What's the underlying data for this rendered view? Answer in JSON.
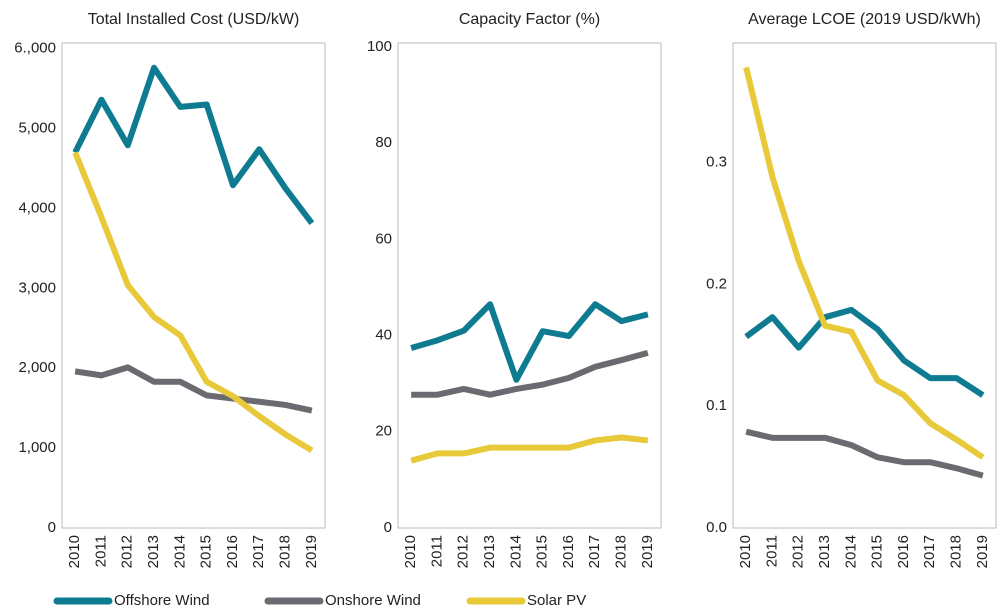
{
  "chart_data": [
    {
      "type": "line",
      "title": "Total Installed Cost (USD/kW)",
      "categories": [
        "2010",
        "2011",
        "2012",
        "2013",
        "2014",
        "2015",
        "2016",
        "2017",
        "2018",
        "2019"
      ],
      "series": [
        {
          "values": [
            4700,
            5360,
            4790,
            5760,
            5270,
            5300,
            4290,
            4740,
            4250,
            3815
          ]
        },
        {
          "values": [
            1960,
            1910,
            2010,
            1830,
            1830,
            1660,
            1620,
            1580,
            1540,
            1470
          ]
        },
        {
          "values": [
            4700,
            3890,
            3040,
            2640,
            2410,
            1830,
            1650,
            1400,
            1170,
            970
          ]
        }
      ],
      "ylim": [
        0,
        6070
      ],
      "yticks": [
        0,
        {
          "value": 1000,
          "label": "1,000"
        },
        {
          "value": 2000,
          "label": "2,000"
        },
        {
          "value": 3000,
          "label": "3,000"
        },
        {
          "value": 4000,
          "label": "4,000"
        },
        {
          "value": 5000,
          "label": "5,000"
        },
        {
          "value": 6000,
          "label": "6.,000"
        }
      ]
    },
    {
      "type": "line",
      "title": "Capacity Factor (%)",
      "categories": [
        "2010",
        "2011",
        "2012",
        "2013",
        "2014",
        "2015",
        "2016",
        "2017",
        "2018",
        "2019"
      ],
      "series": [
        {
          "values": [
            37.4,
            39,
            41,
            46.5,
            30.8,
            40.9,
            39.9,
            46.5,
            43,
            44.4
          ]
        },
        {
          "values": [
            27.7,
            27.7,
            28.9,
            27.7,
            28.9,
            29.8,
            31.2,
            33.5,
            34.9,
            36.4
          ]
        },
        {
          "values": [
            14,
            15.5,
            15.5,
            16.7,
            16.7,
            16.7,
            16.7,
            18.2,
            18.8,
            18.2
          ]
        }
      ],
      "ylim": [
        0,
        100.8
      ],
      "yticks": [
        0,
        20,
        40,
        60,
        80,
        100
      ]
    },
    {
      "type": "line",
      "title": "Average LCOE (2019 USD/kWh)",
      "categories": [
        "2010",
        "2011",
        "2012",
        "2013",
        "2014",
        "2015",
        "2016",
        "2017",
        "2018",
        "2019"
      ],
      "series": [
        {
          "values": [
            0.157,
            0.173,
            0.148,
            0.173,
            0.179,
            0.163,
            0.1375,
            0.123,
            0.123,
            0.109
          ]
        },
        {
          "values": [
            0.079,
            0.074,
            0.074,
            0.074,
            0.068,
            0.058,
            0.054,
            0.054,
            0.049,
            0.043
          ]
        },
        {
          "values": [
            0.378,
            0.288,
            0.219,
            0.166,
            0.161,
            0.121,
            0.109,
            0.086,
            0.0725,
            0.058
          ]
        }
      ],
      "ylim": [
        0,
        0.398
      ],
      "yticks": [
        {
          "value": 0,
          "label": "0.0"
        },
        0.1,
        0.2,
        0.3
      ]
    }
  ],
  "legend": [
    {
      "name": "Offshore Wind",
      "color": "#0f7b91"
    },
    {
      "name": "Onshore Wind",
      "color": "#6b6a70"
    },
    {
      "name": "Solar PV",
      "color": "#e8c93a"
    }
  ]
}
